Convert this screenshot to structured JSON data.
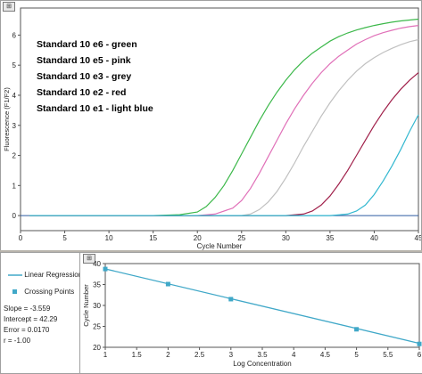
{
  "chart_data": [
    {
      "type": "line",
      "xlabel": "Cycle Number",
      "ylabel": "Fluorescence (F1/F2)",
      "xlim": [
        0,
        45
      ],
      "ylim": [
        -0.5,
        6.9
      ],
      "xticks": [
        0,
        5,
        10,
        15,
        20,
        25,
        30,
        35,
        40,
        45
      ],
      "yticks": [
        0,
        1,
        2,
        3,
        4,
        5,
        6
      ],
      "annotations": [
        "Standard 10 e6  -  green",
        "Standard 10 e5  -  pink",
        "Standard 10 e3  -  grey",
        "Standard 10 e2  -  red",
        "Standard 10 e1  -  light blue"
      ],
      "series": [
        {
          "color": "#3cb84a",
          "x": [
            1,
            5,
            10,
            15,
            18,
            20,
            21,
            22,
            23,
            24,
            25,
            26,
            27,
            28,
            29,
            30,
            31,
            32,
            33,
            34,
            35,
            36,
            37,
            38,
            39,
            40,
            41,
            42,
            43,
            44,
            45
          ],
          "y": [
            0,
            0,
            0,
            0,
            0.03,
            0.12,
            0.3,
            0.6,
            1.0,
            1.5,
            2.05,
            2.6,
            3.15,
            3.65,
            4.1,
            4.5,
            4.85,
            5.15,
            5.4,
            5.6,
            5.8,
            5.95,
            6.07,
            6.17,
            6.25,
            6.32,
            6.38,
            6.43,
            6.47,
            6.5,
            6.53
          ]
        },
        {
          "color": "#e070b8",
          "x": [
            1,
            5,
            10,
            15,
            20,
            22,
            24,
            25,
            26,
            27,
            28,
            29,
            30,
            31,
            32,
            33,
            34,
            35,
            36,
            37,
            38,
            39,
            40,
            41,
            42,
            43,
            44,
            45
          ],
          "y": [
            0,
            0,
            0,
            0,
            0,
            0.05,
            0.25,
            0.5,
            0.9,
            1.4,
            1.95,
            2.5,
            3.05,
            3.55,
            4.0,
            4.4,
            4.75,
            5.05,
            5.3,
            5.5,
            5.7,
            5.85,
            5.98,
            6.08,
            6.16,
            6.23,
            6.28,
            6.32
          ]
        },
        {
          "color": "#c0c0c0",
          "x": [
            1,
            5,
            10,
            15,
            20,
            25,
            26,
            27,
            28,
            29,
            30,
            31,
            32,
            33,
            34,
            35,
            36,
            37,
            38,
            39,
            40,
            41,
            42,
            43,
            44,
            45
          ],
          "y": [
            0,
            0,
            0,
            0,
            0,
            0,
            0.05,
            0.2,
            0.45,
            0.8,
            1.25,
            1.75,
            2.3,
            2.8,
            3.3,
            3.75,
            4.15,
            4.5,
            4.8,
            5.05,
            5.25,
            5.42,
            5.56,
            5.68,
            5.78,
            5.85
          ]
        },
        {
          "color": "#a0204a",
          "x": [
            1,
            5,
            10,
            15,
            20,
            25,
            30,
            32,
            33,
            34,
            35,
            36,
            37,
            38,
            39,
            40,
            41,
            42,
            43,
            44,
            45
          ],
          "y": [
            0,
            0,
            0,
            0,
            0,
            0,
            0,
            0.05,
            0.15,
            0.35,
            0.65,
            1.05,
            1.5,
            2.0,
            2.5,
            3.0,
            3.45,
            3.85,
            4.2,
            4.5,
            4.75
          ]
        },
        {
          "color": "#33b8d0",
          "x": [
            1,
            5,
            10,
            15,
            20,
            25,
            30,
            35,
            37,
            38,
            39,
            40,
            41,
            42,
            43,
            44,
            45
          ],
          "y": [
            0,
            0,
            0,
            0,
            0,
            0,
            0,
            0,
            0.05,
            0.15,
            0.35,
            0.7,
            1.15,
            1.65,
            2.2,
            2.8,
            3.35
          ]
        }
      ]
    },
    {
      "type": "scatter",
      "xlabel": "Log Concentration",
      "ylabel": "Cycle Number",
      "xlim": [
        1,
        6
      ],
      "ylim": [
        20,
        40
      ],
      "xticks": [
        "1",
        "1.5",
        "2",
        "2.5",
        "3",
        "3.5",
        "4",
        "4.5",
        "5",
        "5.5",
        "6"
      ],
      "yticks": [
        20,
        25,
        30,
        35,
        40
      ],
      "series": [
        {
          "name": "Crossing Points",
          "color": "#40a8c8",
          "x": [
            1,
            2,
            3,
            5,
            6
          ],
          "y": [
            38.7,
            35.1,
            31.5,
            24.3,
            20.8
          ]
        },
        {
          "name": "Linear Regression",
          "color": "#40a8c8",
          "x": [
            1,
            6
          ],
          "y": [
            38.73,
            20.94
          ]
        }
      ],
      "legend": [
        "Linear Regression",
        "Crossing Points"
      ],
      "stats": [
        "Slope = -3.559",
        "Intercept = 42.29",
        "Error = 0.0170",
        "r = -1.00"
      ]
    }
  ]
}
